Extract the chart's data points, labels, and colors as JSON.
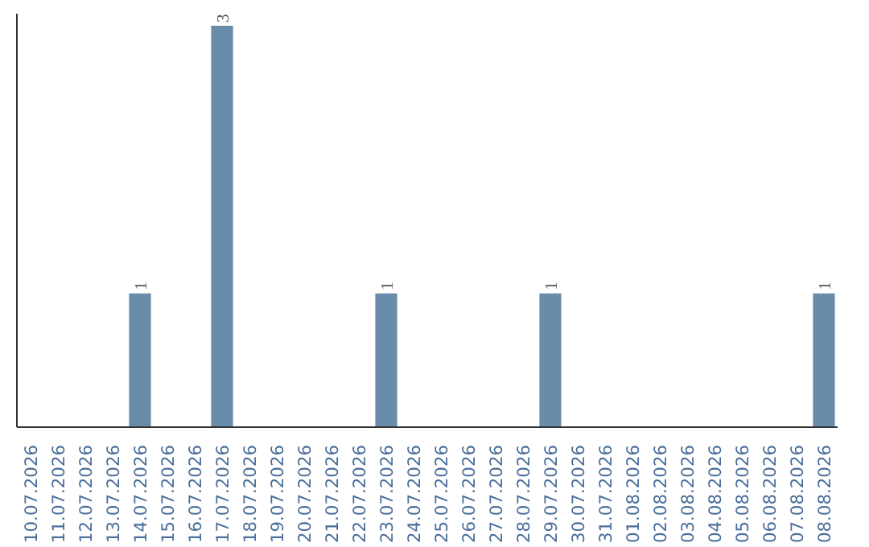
{
  "chart_data": {
    "type": "bar",
    "categories": [
      "10.07.2026",
      "11.07.2026",
      "12.07.2026",
      "13.07.2026",
      "14.07.2026",
      "15.07.2026",
      "16.07.2026",
      "17.07.2026",
      "18.07.2026",
      "19.07.2026",
      "20.07.2026",
      "21.07.2026",
      "22.07.2026",
      "23.07.2026",
      "24.07.2026",
      "25.07.2026",
      "26.07.2026",
      "27.07.2026",
      "28.07.2026",
      "29.07.2026",
      "30.07.2026",
      "31.07.2026",
      "01.08.2026",
      "02.08.2026",
      "03.08.2026",
      "04.08.2026",
      "05.08.2026",
      "06.08.2026",
      "07.08.2026",
      "08.08.2026"
    ],
    "values": [
      0,
      0,
      0,
      0,
      1,
      0,
      0,
      3,
      0,
      0,
      0,
      0,
      0,
      1,
      0,
      0,
      0,
      0,
      0,
      1,
      0,
      0,
      0,
      0,
      0,
      0,
      0,
      0,
      0,
      1
    ],
    "value_labels": [
      null,
      null,
      null,
      null,
      "1",
      null,
      null,
      "3",
      null,
      null,
      null,
      null,
      null,
      "1",
      null,
      null,
      null,
      null,
      null,
      "1",
      null,
      null,
      null,
      null,
      null,
      null,
      null,
      null,
      null,
      "1"
    ],
    "color": "#6a8cab",
    "grid": false,
    "tick_labels": "x"
  }
}
